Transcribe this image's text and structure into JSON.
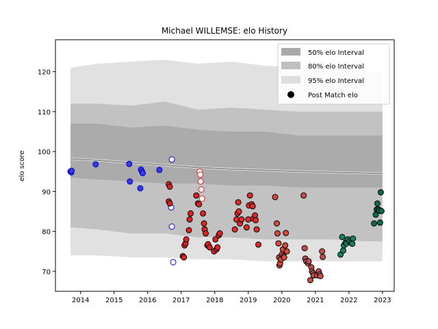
{
  "chart_data": {
    "type": "scatter",
    "title": "Michael WILLEMSE: elo History",
    "xlabel": "",
    "ylabel": "elo score",
    "xlim": [
      2013.25,
      2023.35
    ],
    "ylim": [
      65,
      128
    ],
    "x_ticks": [
      2014,
      2015,
      2016,
      2017,
      2018,
      2019,
      2020,
      2021,
      2022,
      2023
    ],
    "x_tick_labels": [
      "2014",
      "2015",
      "2016",
      "2017",
      "2018",
      "2019",
      "2020",
      "2021",
      "2022",
      "2023"
    ],
    "y_ticks": [
      70,
      80,
      90,
      100,
      110,
      120
    ],
    "y_tick_labels": [
      "70",
      "80",
      "90",
      "100",
      "110",
      "120"
    ],
    "legend": {
      "placement": "upper right",
      "entries": [
        {
          "label": "50% elo Interval",
          "color": "#a9a9a9"
        },
        {
          "label": "80% elo Interval",
          "color": "#bfbfbf"
        },
        {
          "label": "95% elo Interval",
          "color": "#dedede"
        },
        {
          "label": "Post Match elo",
          "color": "#000000"
        }
      ]
    },
    "intervals": {
      "x": [
        2013.7,
        2014.5,
        2015.5,
        2016.5,
        2017.5,
        2018.5,
        2019.5,
        2020.5,
        2021.5,
        2022.5,
        2023.0
      ],
      "mean": [
        98.2,
        97.8,
        97.2,
        96.6,
        96.0,
        95.6,
        95.3,
        95.0,
        94.8,
        94.6,
        94.5
      ],
      "b50": [
        [
          93.5,
          107.0
        ],
        [
          93.0,
          107.0
        ],
        [
          92.5,
          106.0
        ],
        [
          92.0,
          106.5
        ],
        [
          92.0,
          105.5
        ],
        [
          91.5,
          105.0
        ],
        [
          91.5,
          105.0
        ],
        [
          91.0,
          104.0
        ],
        [
          91.0,
          104.0
        ],
        [
          91.0,
          104.0
        ],
        [
          91.0,
          104.0
        ]
      ],
      "b80": [
        [
          81.0,
          112.0
        ],
        [
          80.5,
          112.0
        ],
        [
          79.5,
          111.5
        ],
        [
          79.5,
          112.5
        ],
        [
          78.5,
          110.5
        ],
        [
          78.5,
          111.0
        ],
        [
          78.0,
          110.5
        ],
        [
          78.0,
          110.0
        ],
        [
          78.0,
          110.0
        ],
        [
          77.5,
          110.0
        ],
        [
          77.5,
          110.0
        ]
      ],
      "b95": [
        [
          74.0,
          121.0
        ],
        [
          74.0,
          122.0
        ],
        [
          73.5,
          122.5
        ],
        [
          73.5,
          123.0
        ],
        [
          73.0,
          122.0
        ],
        [
          73.0,
          122.5
        ],
        [
          72.5,
          121.5
        ],
        [
          72.5,
          121.0
        ],
        [
          72.5,
          120.0
        ],
        [
          72.5,
          120.0
        ],
        [
          72.5,
          120.0
        ]
      ]
    },
    "series": [
      {
        "era": "2013-2016",
        "fill": "#3a3adb",
        "edge": "#0000cc",
        "points": [
          [
            2013.7,
            95.0
          ],
          [
            2013.72,
            94.8
          ],
          [
            2013.73,
            95.2
          ],
          [
            2014.45,
            96.8
          ],
          [
            2015.45,
            96.9
          ],
          [
            2015.47,
            92.5
          ],
          [
            2015.8,
            95.5
          ],
          [
            2015.83,
            95.0
          ],
          [
            2015.85,
            94.6
          ],
          [
            2015.78,
            90.8
          ],
          [
            2016.35,
            95.4
          ]
        ]
      },
      {
        "era": "2016-2017 (hollow)",
        "fill": "#ffffff",
        "edge": "#0000cc",
        "points": [
          [
            2016.72,
            98.0
          ],
          [
            2016.7,
            86.0
          ],
          [
            2016.72,
            81.2
          ],
          [
            2016.76,
            72.3
          ]
        ]
      },
      {
        "era": "2016-2017 (red)",
        "fill": "#dd2222",
        "edge": "#000000",
        "points": [
          [
            2016.63,
            91.8
          ],
          [
            2016.66,
            91.2
          ],
          [
            2016.63,
            87.5
          ],
          [
            2016.66,
            87.0
          ],
          [
            2017.05,
            73.8
          ],
          [
            2017.08,
            73.5
          ],
          [
            2017.1,
            76.5
          ],
          [
            2017.13,
            77.0
          ],
          [
            2017.15,
            78.0
          ],
          [
            2017.23,
            80.3
          ],
          [
            2017.25,
            83.0
          ],
          [
            2017.28,
            84.5
          ],
          [
            2017.45,
            89.0
          ],
          [
            2017.5,
            87.0
          ],
          [
            2017.53,
            86.8
          ],
          [
            2017.65,
            84.5
          ],
          [
            2017.68,
            82.0
          ],
          [
            2017.7,
            80.5
          ],
          [
            2017.73,
            79.5
          ],
          [
            2017.78,
            76.5
          ],
          [
            2017.8,
            76.8
          ],
          [
            2017.85,
            76.0
          ],
          [
            2017.98,
            75.0
          ],
          [
            2018.02,
            78.0
          ],
          [
            2018.05,
            75.5
          ],
          [
            2018.08,
            76.0
          ],
          [
            2018.12,
            79.0
          ],
          [
            2018.15,
            79.5
          ]
        ]
      },
      {
        "era": "2017 (hollow red)",
        "fill": "#ffffff",
        "edge": "#dd2222",
        "points": [
          [
            2017.55,
            95.0
          ],
          [
            2017.57,
            94.2
          ],
          [
            2017.58,
            92.5
          ],
          [
            2017.6,
            90.5
          ],
          [
            2017.62,
            88.2
          ]
        ]
      },
      {
        "era": "2018-2019",
        "fill": "#dd2a2a",
        "edge": "#000000",
        "points": [
          [
            2018.6,
            80.5
          ],
          [
            2018.65,
            83.0
          ],
          [
            2018.68,
            84.5
          ],
          [
            2018.7,
            87.3
          ],
          [
            2018.72,
            85.0
          ],
          [
            2018.75,
            82.0
          ],
          [
            2018.8,
            83.0
          ],
          [
            2018.95,
            81.0
          ],
          [
            2019.0,
            83.0
          ],
          [
            2019.02,
            86.5
          ],
          [
            2019.05,
            89.0
          ],
          [
            2019.1,
            86.8
          ],
          [
            2019.13,
            86.3
          ],
          [
            2019.15,
            83.2
          ],
          [
            2019.2,
            84.0
          ],
          [
            2019.22,
            82.8
          ],
          [
            2019.25,
            80.5
          ],
          [
            2019.3,
            76.7
          ]
        ]
      },
      {
        "era": "2019-2020",
        "fill": "#d14a3a",
        "edge": "#000000",
        "points": [
          [
            2019.8,
            88.6
          ],
          [
            2019.85,
            82.0
          ],
          [
            2019.87,
            79.5
          ],
          [
            2019.9,
            77.0
          ],
          [
            2019.92,
            73.5
          ],
          [
            2019.93,
            71.5
          ],
          [
            2019.95,
            72.0
          ],
          [
            2019.97,
            73.0
          ],
          [
            2020.0,
            74.2
          ],
          [
            2020.03,
            75.5
          ],
          [
            2020.05,
            73.8
          ],
          [
            2020.07,
            73.5
          ],
          [
            2020.1,
            76.5
          ],
          [
            2020.12,
            79.6
          ],
          [
            2020.15,
            75.0
          ]
        ]
      },
      {
        "era": "2020-2021",
        "fill": "#c0504f",
        "edge": "#000000",
        "points": [
          [
            2020.65,
            89.0
          ],
          [
            2020.68,
            75.8
          ],
          [
            2020.7,
            73.2
          ],
          [
            2020.73,
            72.5
          ],
          [
            2020.78,
            72.0
          ],
          [
            2020.8,
            72.5
          ],
          [
            2020.85,
            67.8
          ],
          [
            2020.88,
            71.0
          ],
          [
            2020.9,
            70.0
          ],
          [
            2020.93,
            69.5
          ],
          [
            2020.95,
            69.0
          ],
          [
            2021.05,
            69.0
          ],
          [
            2021.1,
            70.0
          ],
          [
            2021.13,
            69.2
          ],
          [
            2021.15,
            68.8
          ],
          [
            2021.2,
            75.0
          ],
          [
            2021.22,
            73.6
          ]
        ]
      },
      {
        "era": "2021-2022",
        "fill": "#1a8060",
        "edge": "#000000",
        "points": [
          [
            2021.75,
            74.2
          ],
          [
            2021.8,
            78.6
          ],
          [
            2021.83,
            75.2
          ],
          [
            2021.85,
            76.5
          ],
          [
            2021.9,
            77.2
          ],
          [
            2021.93,
            77.0
          ],
          [
            2021.97,
            78.0
          ],
          [
            2022.02,
            77.5
          ],
          [
            2022.07,
            77.2
          ],
          [
            2022.1,
            76.9
          ],
          [
            2022.12,
            78.2
          ]
        ]
      },
      {
        "era": "2022-2023",
        "fill": "#0f6a4a",
        "edge": "#000000",
        "points": [
          [
            2022.75,
            82.0
          ],
          [
            2022.8,
            84.2
          ],
          [
            2022.83,
            85.5
          ],
          [
            2022.85,
            87.0
          ],
          [
            2022.88,
            85.5
          ],
          [
            2022.9,
            85.2
          ],
          [
            2022.93,
            82.2
          ],
          [
            2022.95,
            89.8
          ],
          [
            2022.97,
            85.1
          ]
        ]
      }
    ]
  }
}
